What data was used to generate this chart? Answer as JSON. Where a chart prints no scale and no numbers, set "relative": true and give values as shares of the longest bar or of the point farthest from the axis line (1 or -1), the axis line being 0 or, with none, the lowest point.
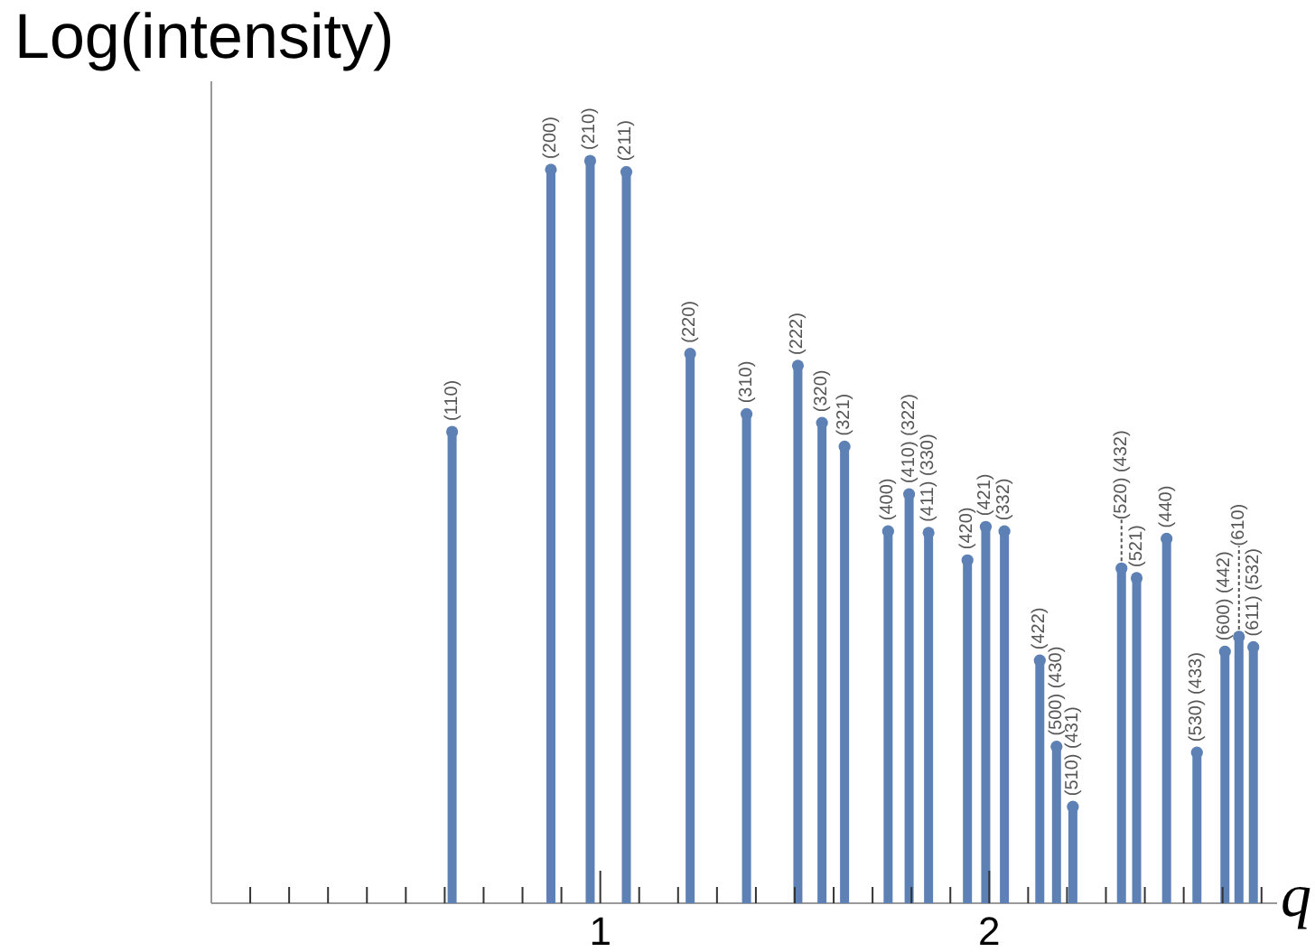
{
  "chart_data": {
    "type": "lollipop",
    "xlabel": "q",
    "ylabel": "Log(intensity)",
    "relative": true,
    "color": "#5e81b5",
    "marker": "circle",
    "x": [
      0.619,
      0.873,
      0.974,
      1.067,
      1.231,
      1.376,
      1.508,
      1.57,
      1.628,
      1.74,
      1.794,
      1.844,
      1.944,
      1.991,
      2.039,
      2.13,
      2.173,
      2.215,
      2.34,
      2.379,
      2.456,
      2.534,
      2.606,
      2.642,
      2.679
    ],
    "values": [
      0.635,
      0.988,
      1,
      0.985,
      0.74,
      0.659,
      0.724,
      0.647,
      0.615,
      0.501,
      0.551,
      0.499,
      0.462,
      0.507,
      0.501,
      0.327,
      0.211,
      0.13,
      0.451,
      0.438,
      0.491,
      0.203,
      0.339,
      0.359,
      0.345
    ],
    "annotations": [
      {
        "text": "(110)",
        "x": 0.619,
        "y": 0.635
      },
      {
        "text": "(200)",
        "x": 0.873,
        "y": 0.988
      },
      {
        "text": "(210)",
        "x": 0.974,
        "y": 1
      },
      {
        "text": "(211)",
        "x": 1.067,
        "y": 0.985
      },
      {
        "text": "(220)",
        "x": 1.231,
        "y": 0.74
      },
      {
        "text": "(310)",
        "x": 1.376,
        "y": 0.659
      },
      {
        "text": "(222)",
        "x": 1.508,
        "y": 0.724
      },
      {
        "text": "(320)",
        "x": 1.57,
        "y": 0.647
      },
      {
        "text": "(321)",
        "x": 1.628,
        "y": 0.615
      },
      {
        "text": "(400)",
        "x": 1.74,
        "y": 0.501
      },
      {
        "text": "(410) (322)",
        "x": 1.794,
        "y": 0.551
      },
      {
        "text": "(411) (330)",
        "x": 1.844,
        "y": 0.499
      },
      {
        "text": "(420)",
        "x": 1.944,
        "y": 0.462
      },
      {
        "text": "(421)",
        "x": 1.991,
        "y": 0.507
      },
      {
        "text": "(332)",
        "x": 2.039,
        "y": 0.501
      },
      {
        "text": "(422)",
        "x": 2.13,
        "y": 0.327
      },
      {
        "text": "(500) (430)",
        "x": 2.173,
        "y": 0.211
      },
      {
        "text": "(510) (431)",
        "x": 2.215,
        "y": 0.13
      },
      {
        "text": "(520) (432)",
        "x": 2.34,
        "y": 0.451
      },
      {
        "text": "(521)",
        "x": 2.379,
        "y": 0.438
      },
      {
        "text": "(440)",
        "x": 2.456,
        "y": 0.491
      },
      {
        "text": "(530) (433)",
        "x": 2.534,
        "y": 0.203
      },
      {
        "text": "(600) (442)",
        "x": 2.606,
        "y": 0.339
      },
      {
        "text": "(610)",
        "x": 2.642,
        "y": 0.359
      },
      {
        "text": "(611) (532)",
        "x": 2.679,
        "y": 0.345
      }
    ],
    "xlim": [
      0,
      2.74
    ],
    "xticks": [
      {
        "value": 0.1,
        "label": null
      },
      {
        "value": 0.2,
        "label": null
      },
      {
        "value": 0.3,
        "label": null
      },
      {
        "value": 0.4,
        "label": null
      },
      {
        "value": 0.5,
        "label": null
      },
      {
        "value": 0.6,
        "label": null
      },
      {
        "value": 0.7,
        "label": null
      },
      {
        "value": 0.8,
        "label": null
      },
      {
        "value": 0.9,
        "label": null
      },
      1,
      {
        "value": 1.1,
        "label": null
      },
      {
        "value": 1.2,
        "label": null
      },
      {
        "value": 1.3,
        "label": null
      },
      {
        "value": 1.4,
        "label": null
      },
      {
        "value": 1.5,
        "label": null
      },
      {
        "value": 1.6,
        "label": null
      },
      {
        "value": 1.7,
        "label": null
      },
      {
        "value": 1.8,
        "label": null
      },
      {
        "value": 1.9,
        "label": null
      },
      2,
      {
        "value": 2.1,
        "label": null
      },
      {
        "value": 2.2,
        "label": null
      },
      {
        "value": 2.3,
        "label": null
      },
      {
        "value": 2.4,
        "label": null
      },
      {
        "value": 2.5,
        "label": null
      },
      {
        "value": 2.6,
        "label": null
      },
      {
        "value": 2.7,
        "label": null
      }
    ]
  }
}
